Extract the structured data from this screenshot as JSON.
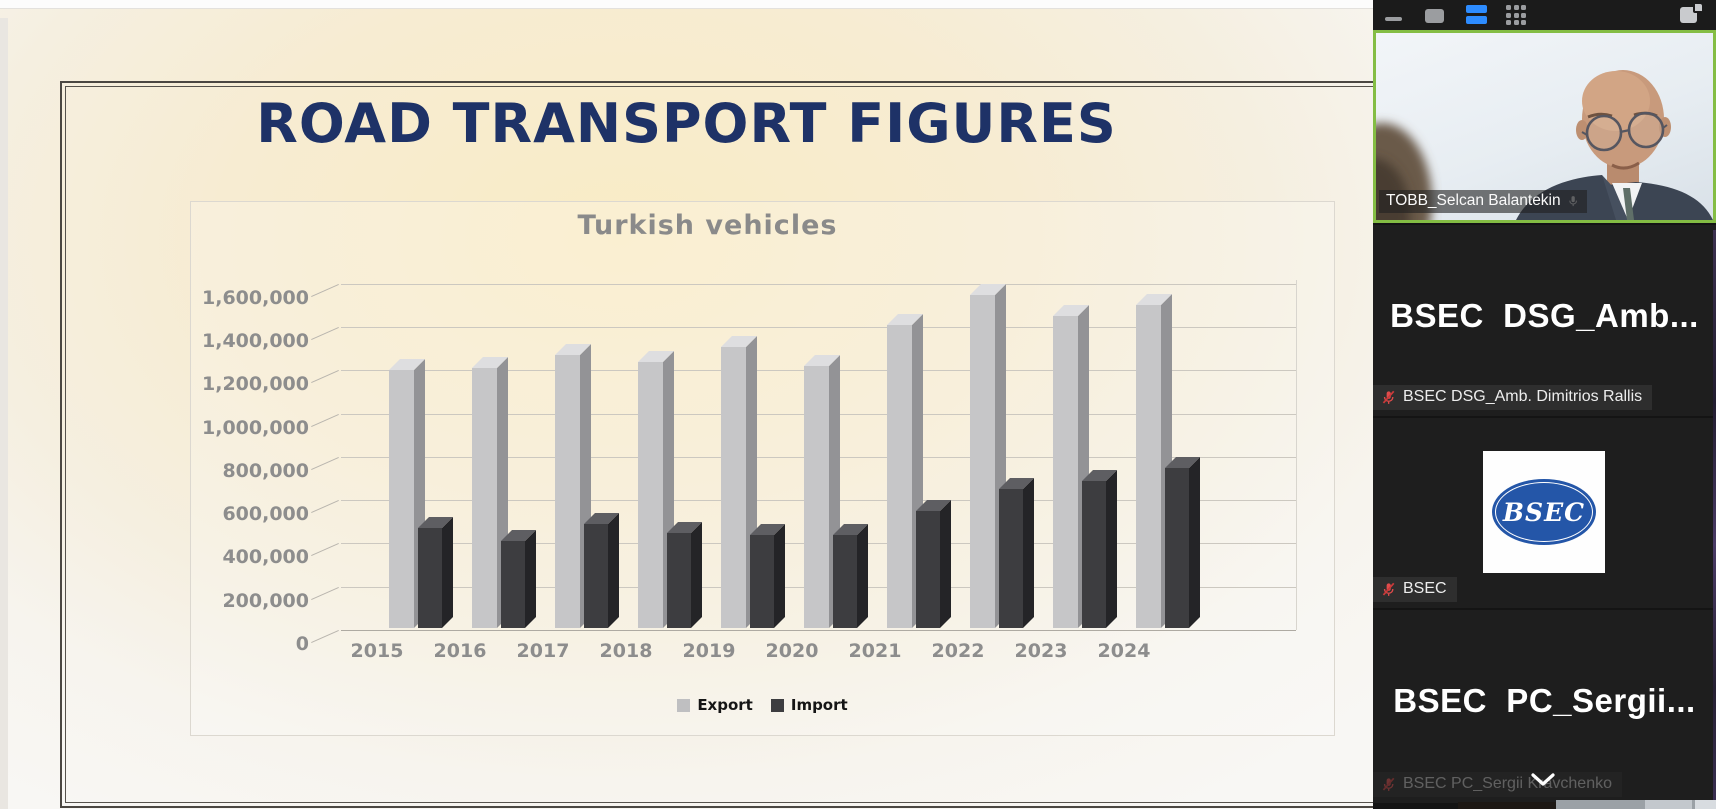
{
  "slide": {
    "title": "ROAD TRANSPORT FIGURES"
  },
  "chart_data": {
    "type": "bar",
    "style": "3d-clustered",
    "title": "Turkish vehicles",
    "categories": [
      "2015",
      "2016",
      "2017",
      "2018",
      "2019",
      "2020",
      "2021",
      "2022",
      "2023",
      "2024"
    ],
    "series": [
      {
        "name": "Export",
        "values": [
          1190000,
          1200000,
          1260000,
          1230000,
          1300000,
          1210000,
          1400000,
          1540000,
          1440000,
          1490000
        ]
      },
      {
        "name": "Import",
        "values": [
          460000,
          400000,
          480000,
          440000,
          430000,
          430000,
          540000,
          640000,
          680000,
          740000
        ]
      }
    ],
    "ylim": [
      0,
      1600000
    ],
    "ytick_step": 200000,
    "ytick_labels": [
      "0",
      "200,000",
      "400,000",
      "600,000",
      "800,000",
      "1,000,000",
      "1,200,000",
      "1,400,000",
      "1,600,000"
    ],
    "grid": true,
    "legend_position": "bottom",
    "colors": {
      "export_front": "#c6c6c8",
      "export_top": "#dedee0",
      "export_side": "#939396",
      "import_front": "#3d3d40",
      "import_top": "#5e5e62",
      "import_side": "#242427",
      "axis_text": "#8d8d8d",
      "title_text": "#8a8a8a"
    }
  },
  "sidebar": {
    "toolbar": {
      "icons": [
        {
          "name": "minimize-icon",
          "active": false
        },
        {
          "name": "speaker-view-icon",
          "active": false
        },
        {
          "name": "stacked-view-icon",
          "active": true,
          "active_color": "#2d8cff"
        },
        {
          "name": "gallery-view-icon",
          "active": false
        },
        {
          "name": "popout-view-icon",
          "active": false
        }
      ]
    },
    "participants": [
      {
        "name_badge": "TOBB_Selcan Balantekin",
        "has_video": true,
        "active_speaker": true
      },
      {
        "big_label": "BSEC  DSG_Amb...",
        "name_badge": "BSEC DSG_Amb. Dimitrios Rallis",
        "muted": true
      },
      {
        "logo_text": "BSEC",
        "name_badge": "BSEC",
        "muted": true
      },
      {
        "big_label": "BSEC  PC_Sergii...",
        "name_badge": "BSEC PC_Sergii Kravchenko",
        "muted": true,
        "dimmed": true
      }
    ]
  },
  "colors": {
    "title_navy": "#1e3267",
    "active_border_green": "#84bd44",
    "accent_blue": "#2d8cff",
    "bsec_blue": "#2456a8",
    "muted_mic_red": "#e14b4b",
    "sidebar_bg": "#141414"
  }
}
